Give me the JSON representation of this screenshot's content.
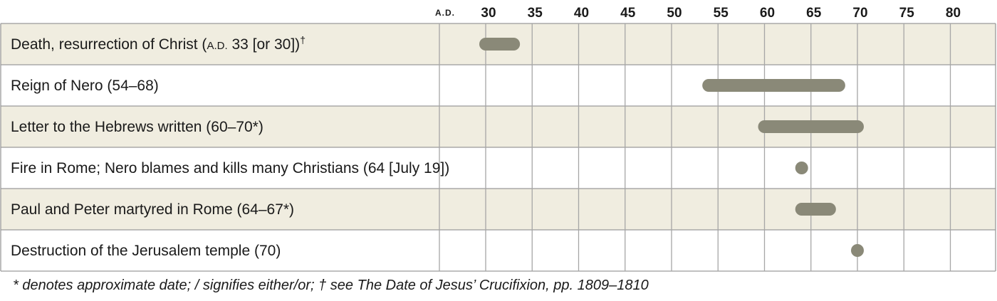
{
  "chart_data": {
    "type": "timeline",
    "era_label": "A.D.",
    "ticks": [
      30,
      35,
      40,
      45,
      50,
      55,
      60,
      65,
      70,
      75,
      80
    ],
    "x_range": [
      25,
      82.5
    ],
    "events": [
      {
        "label": "Death, resurrection of Christ (A.D. 33 [or 30])†",
        "start": 30,
        "end": 33
      },
      {
        "label": "Reign of Nero (54–68)",
        "start": 54,
        "end": 68
      },
      {
        "label": "Letter to the Hebrews written (60–70*)",
        "start": 60,
        "end": 70
      },
      {
        "label": "Fire in Rome; Nero blames and kills many Christians (64 [July 19])",
        "start": 64,
        "end": 64
      },
      {
        "label": "Paul and Peter martyred in Rome (64–67*)",
        "start": 64,
        "end": 67
      },
      {
        "label": "Destruction of the Jerusalem temple (70)",
        "start": 70,
        "end": 70
      }
    ],
    "colors": {
      "bar": "#8a8978",
      "band": "#f0ede0",
      "grid": "#a6a6a6",
      "border": "#9a9a9a"
    }
  },
  "footnote": "* denotes approximate date; / signifies either/or; † see The Date of Jesus’ Crucifixion, pp. 1809–1810"
}
